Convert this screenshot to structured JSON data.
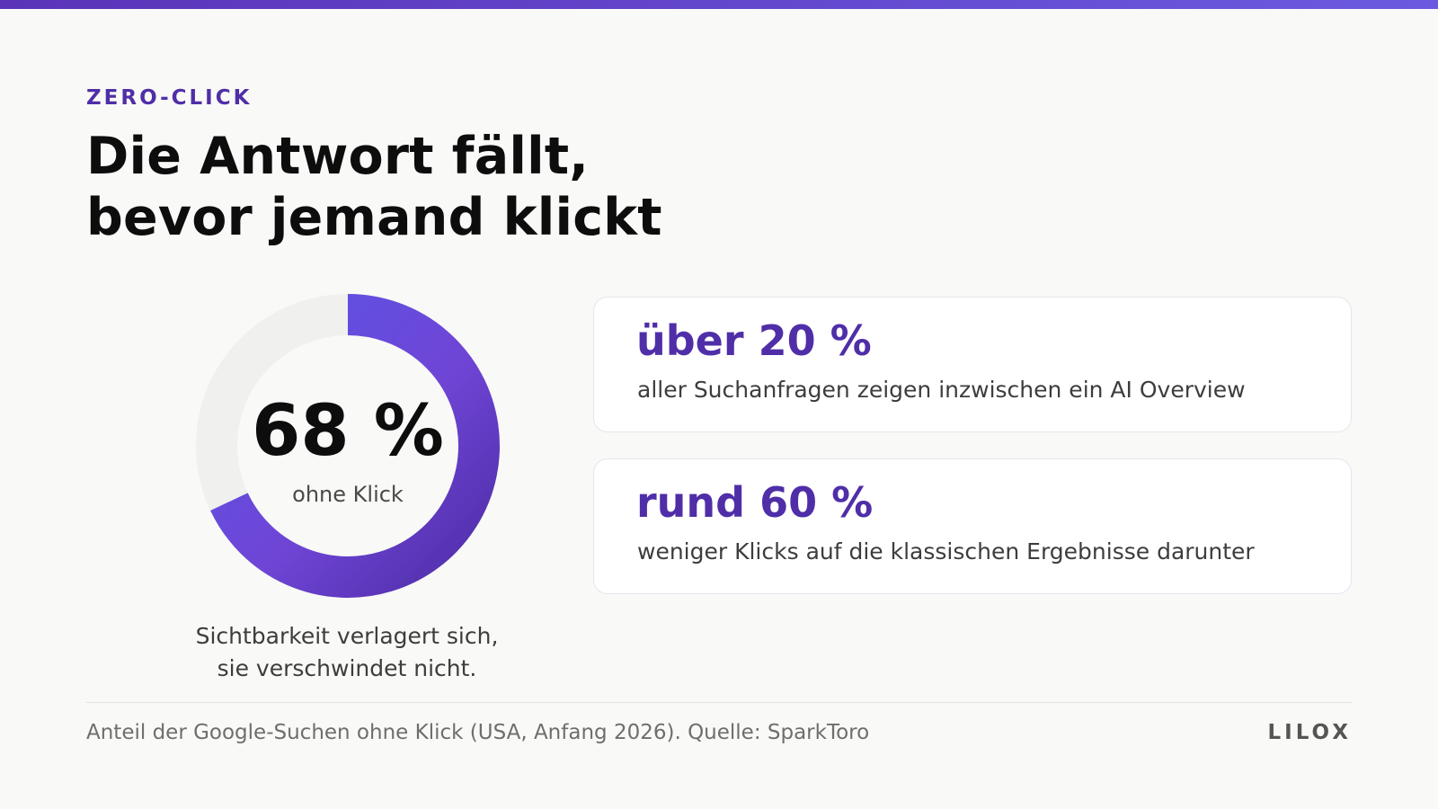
{
  "eyebrow": "ZERO-CLICK",
  "headline": {
    "line1": "Die Antwort fällt,",
    "line2": "bevor jemand klickt"
  },
  "chart_data": {
    "type": "pie",
    "variant": "donut",
    "value_percent": 68,
    "center_value": "68 %",
    "center_label": "ohne Klick",
    "caption": {
      "line1": "Sichtbarkeit verlagert sich,",
      "line2": "sie verschwindet nicht."
    },
    "colors": {
      "arc_start": "#5a55e6",
      "arc_mid": "#6f45d6",
      "arc_end": "#4f2ea8",
      "track": "#f0f0ee"
    }
  },
  "stats": [
    {
      "value": "über 20 %",
      "text": "aller Suchanfragen zeigen inzwischen ein AI Overview"
    },
    {
      "value": "rund 60 %",
      "text": "weniger Klicks auf die klassischen Ergebnisse darunter"
    }
  ],
  "footer": {
    "source": "Anteil der Google-Suchen ohne Klick (USA, Anfang 2026). Quelle: SparkToro",
    "logo": "LILOX"
  },
  "colors": {
    "accent": "#4f2ea8",
    "background": "#f9f9f7",
    "top_bar_start": "#5a33b8",
    "top_bar_end": "#6b5ae0"
  }
}
